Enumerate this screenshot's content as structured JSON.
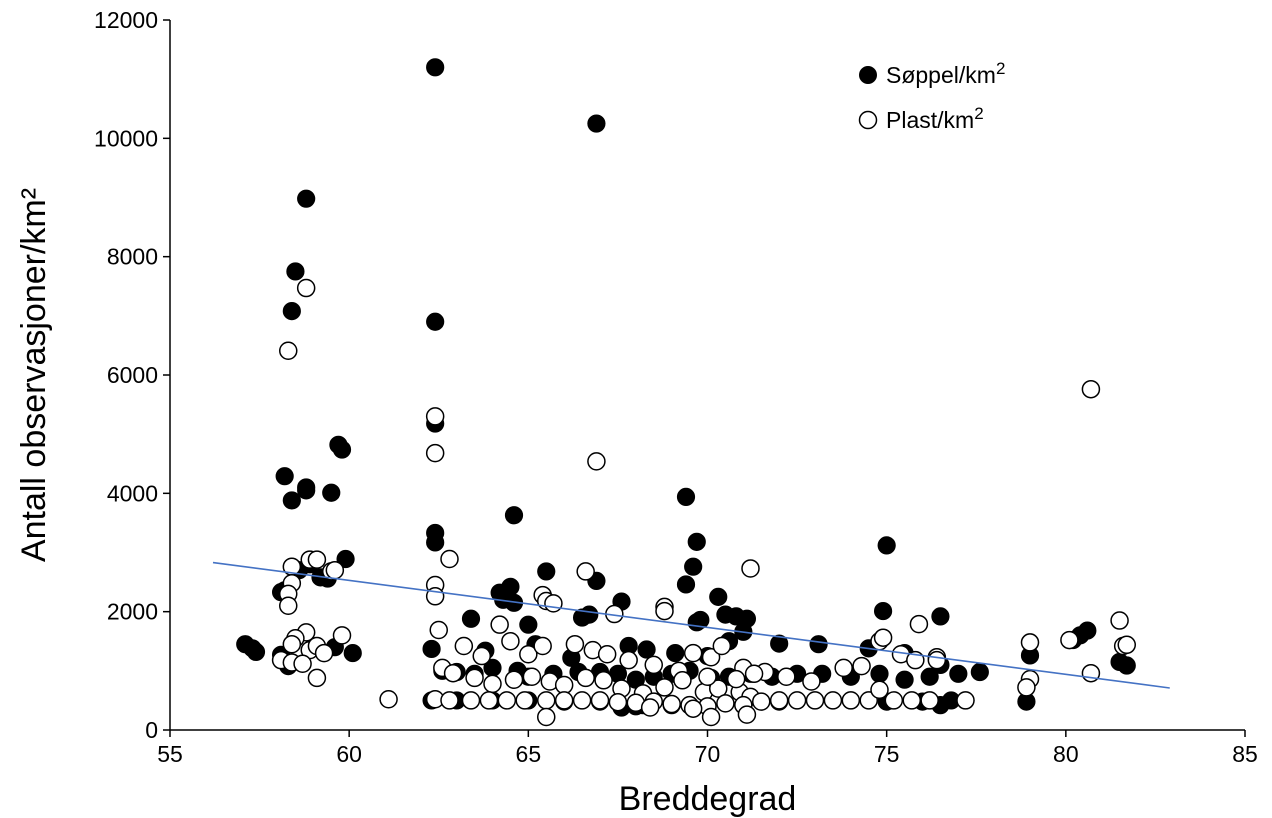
{
  "chart_data": {
    "type": "scatter",
    "title": "",
    "xlabel": "Breddegrad",
    "ylabel": "Antall observasjoner/km²",
    "xlim": [
      55,
      85
    ],
    "ylim": [
      0,
      12000
    ],
    "x_ticks": [
      "55",
      "60",
      "65",
      "70",
      "75",
      "80",
      "85"
    ],
    "y_ticks": [
      "0",
      "2000",
      "4000",
      "6000",
      "8000",
      "10000",
      "12000"
    ],
    "grid": false,
    "legend_position": "top-right",
    "series": [
      {
        "name": "Søppel/km2",
        "marker": "filled-circle",
        "color": "#000000",
        "points": [
          [
            62.4,
            11200
          ],
          [
            66.9,
            10250
          ],
          [
            58.8,
            8980
          ],
          [
            58.5,
            7750
          ],
          [
            58.4,
            7080
          ],
          [
            62.4,
            6900
          ],
          [
            59.7,
            4820
          ],
          [
            59.8,
            4740
          ],
          [
            58.2,
            4290
          ],
          [
            58.8,
            4100
          ],
          [
            58.8,
            4050
          ],
          [
            59.5,
            4010
          ],
          [
            58.4,
            3880
          ],
          [
            69.4,
            3940
          ],
          [
            64.6,
            3630
          ],
          [
            62.4,
            5180
          ],
          [
            62.4,
            3330
          ],
          [
            62.4,
            3170
          ],
          [
            69.7,
            3180
          ],
          [
            75.0,
            3120
          ],
          [
            59.9,
            2890
          ],
          [
            58.9,
            2800
          ],
          [
            58.6,
            2700
          ],
          [
            59.2,
            2580
          ],
          [
            59.4,
            2560
          ],
          [
            58.2,
            2360
          ],
          [
            58.1,
            2330
          ],
          [
            65.5,
            2680
          ],
          [
            66.9,
            2520
          ],
          [
            64.5,
            2420
          ],
          [
            64.2,
            2320
          ],
          [
            69.4,
            2460
          ],
          [
            69.6,
            2760
          ],
          [
            64.3,
            2200
          ],
          [
            64.6,
            2150
          ],
          [
            67.6,
            2170
          ],
          [
            70.3,
            2250
          ],
          [
            65.0,
            1780
          ],
          [
            70.8,
            1920
          ],
          [
            71.1,
            1880
          ],
          [
            74.9,
            2010
          ],
          [
            76.5,
            1920
          ],
          [
            66.5,
            1900
          ],
          [
            66.7,
            1950
          ],
          [
            63.4,
            1880
          ],
          [
            69.8,
            1860
          ],
          [
            70.5,
            1950
          ],
          [
            71.0,
            1660
          ],
          [
            62.3,
            1370
          ],
          [
            63.8,
            1340
          ],
          [
            65.2,
            1450
          ],
          [
            66.2,
            1220
          ],
          [
            67.8,
            1420
          ],
          [
            68.3,
            1360
          ],
          [
            69.1,
            1300
          ],
          [
            70.0,
            1250
          ],
          [
            70.6,
            1500
          ],
          [
            72.0,
            1460
          ],
          [
            73.1,
            1450
          ],
          [
            74.5,
            1380
          ],
          [
            75.5,
            1300
          ],
          [
            76.5,
            1100
          ],
          [
            57.1,
            1450
          ],
          [
            57.3,
            1380
          ],
          [
            57.4,
            1320
          ],
          [
            58.1,
            1270
          ],
          [
            58.3,
            1080
          ],
          [
            59.6,
            1400
          ],
          [
            60.1,
            1300
          ],
          [
            62.6,
            1000
          ],
          [
            63.0,
            980
          ],
          [
            63.5,
            950
          ],
          [
            64.0,
            1050
          ],
          [
            64.7,
            1000
          ],
          [
            65.0,
            900
          ],
          [
            65.7,
            950
          ],
          [
            66.4,
            980
          ],
          [
            67.0,
            980
          ],
          [
            67.5,
            950
          ],
          [
            68.0,
            850
          ],
          [
            68.5,
            900
          ],
          [
            69.0,
            950
          ],
          [
            69.5,
            1000
          ],
          [
            70.1,
            880
          ],
          [
            70.6,
            900
          ],
          [
            71.2,
            950
          ],
          [
            71.8,
            900
          ],
          [
            72.5,
            950
          ],
          [
            73.2,
            950
          ],
          [
            74.0,
            900
          ],
          [
            74.8,
            950
          ],
          [
            75.5,
            850
          ],
          [
            76.2,
            900
          ],
          [
            77.0,
            950
          ],
          [
            77.6,
            980
          ],
          [
            78.9,
            480
          ],
          [
            79.0,
            1260
          ],
          [
            80.2,
            1520
          ],
          [
            80.4,
            1600
          ],
          [
            80.6,
            1680
          ],
          [
            81.5,
            1150
          ],
          [
            81.7,
            1090
          ],
          [
            62.3,
            500
          ],
          [
            63.0,
            500
          ],
          [
            64.0,
            500
          ],
          [
            65.0,
            500
          ],
          [
            66.0,
            480
          ],
          [
            67.0,
            480
          ],
          [
            68.0,
            400
          ],
          [
            69.0,
            420
          ],
          [
            70.0,
            400
          ],
          [
            71.0,
            420
          ],
          [
            72.0,
            480
          ],
          [
            73.0,
            500
          ],
          [
            74.0,
            500
          ],
          [
            75.0,
            480
          ],
          [
            76.0,
            480
          ],
          [
            76.5,
            420
          ],
          [
            76.8,
            500
          ],
          [
            77.2,
            500
          ],
          [
            67.6,
            380
          ],
          [
            68.2,
            420
          ],
          [
            69.7,
            1820
          ]
        ]
      },
      {
        "name": "Plast/km2",
        "marker": "open-circle",
        "color": "#000000",
        "points": [
          [
            58.8,
            7470
          ],
          [
            58.3,
            6410
          ],
          [
            80.7,
            5760
          ],
          [
            62.4,
            5300
          ],
          [
            62.4,
            4680
          ],
          [
            66.9,
            4540
          ],
          [
            58.9,
            2880
          ],
          [
            59.1,
            2880
          ],
          [
            59.5,
            2680
          ],
          [
            59.6,
            2700
          ],
          [
            58.4,
            2760
          ],
          [
            62.8,
            2890
          ],
          [
            66.6,
            2680
          ],
          [
            71.2,
            2730
          ],
          [
            62.4,
            2450
          ],
          [
            62.4,
            2260
          ],
          [
            65.4,
            2280
          ],
          [
            58.4,
            2480
          ],
          [
            58.3,
            2300
          ],
          [
            58.3,
            2100
          ],
          [
            68.8,
            2080
          ],
          [
            68.8,
            2010
          ],
          [
            67.4,
            1960
          ],
          [
            75.9,
            1790
          ],
          [
            64.2,
            1780
          ],
          [
            65.5,
            2180
          ],
          [
            65.7,
            2140
          ],
          [
            79.0,
            1480
          ],
          [
            80.1,
            1520
          ],
          [
            81.5,
            1850
          ],
          [
            81.6,
            1420
          ],
          [
            81.7,
            1440
          ],
          [
            80.7,
            960
          ],
          [
            79.0,
            860
          ],
          [
            78.9,
            720
          ],
          [
            58.8,
            1650
          ],
          [
            58.5,
            1550
          ],
          [
            58.4,
            1450
          ],
          [
            58.9,
            1350
          ],
          [
            59.1,
            1420
          ],
          [
            59.3,
            1300
          ],
          [
            59.8,
            1600
          ],
          [
            58.1,
            1180
          ],
          [
            58.4,
            1140
          ],
          [
            58.7,
            1120
          ],
          [
            59.1,
            880
          ],
          [
            62.5,
            1690
          ],
          [
            63.2,
            1420
          ],
          [
            63.7,
            1250
          ],
          [
            64.5,
            1500
          ],
          [
            65.0,
            1280
          ],
          [
            65.4,
            1420
          ],
          [
            66.3,
            1450
          ],
          [
            66.8,
            1350
          ],
          [
            67.2,
            1280
          ],
          [
            67.8,
            1180
          ],
          [
            68.5,
            1100
          ],
          [
            69.2,
            1000
          ],
          [
            69.6,
            1300
          ],
          [
            70.1,
            1230
          ],
          [
            70.4,
            1420
          ],
          [
            71.0,
            1050
          ],
          [
            71.6,
            980
          ],
          [
            72.2,
            900
          ],
          [
            72.9,
            820
          ],
          [
            73.8,
            1050
          ],
          [
            74.3,
            1080
          ],
          [
            74.8,
            1500
          ],
          [
            74.9,
            1560
          ],
          [
            75.4,
            1280
          ],
          [
            75.8,
            1180
          ],
          [
            76.4,
            1230
          ],
          [
            76.4,
            1180
          ],
          [
            62.6,
            1050
          ],
          [
            62.9,
            960
          ],
          [
            63.5,
            880
          ],
          [
            64.0,
            780
          ],
          [
            64.6,
            850
          ],
          [
            65.1,
            900
          ],
          [
            65.6,
            820
          ],
          [
            66.0,
            760
          ],
          [
            66.6,
            880
          ],
          [
            67.1,
            840
          ],
          [
            67.6,
            700
          ],
          [
            68.2,
            620
          ],
          [
            68.8,
            720
          ],
          [
            69.3,
            840
          ],
          [
            69.9,
            640
          ],
          [
            70.3,
            700
          ],
          [
            70.9,
            640
          ],
          [
            71.2,
            560
          ],
          [
            61.1,
            520
          ],
          [
            62.4,
            520
          ],
          [
            62.8,
            500
          ],
          [
            63.4,
            500
          ],
          [
            63.9,
            500
          ],
          [
            64.4,
            500
          ],
          [
            64.9,
            500
          ],
          [
            65.5,
            500
          ],
          [
            66.0,
            500
          ],
          [
            66.5,
            500
          ],
          [
            67.0,
            500
          ],
          [
            67.5,
            470
          ],
          [
            68.0,
            460
          ],
          [
            68.5,
            480
          ],
          [
            69.0,
            440
          ],
          [
            69.5,
            420
          ],
          [
            70.0,
            400
          ],
          [
            70.5,
            450
          ],
          [
            71.0,
            420
          ],
          [
            71.5,
            480
          ],
          [
            72.0,
            500
          ],
          [
            72.5,
            500
          ],
          [
            73.0,
            500
          ],
          [
            73.5,
            500
          ],
          [
            74.0,
            500
          ],
          [
            74.5,
            500
          ],
          [
            75.2,
            500
          ],
          [
            75.7,
            500
          ],
          [
            76.2,
            500
          ],
          [
            77.2,
            500
          ],
          [
            65.5,
            220
          ],
          [
            70.1,
            220
          ],
          [
            71.1,
            260
          ],
          [
            68.4,
            380
          ],
          [
            69.6,
            360
          ],
          [
            74.8,
            680
          ],
          [
            70.0,
            900
          ],
          [
            71.3,
            950
          ],
          [
            70.8,
            860
          ]
        ]
      }
    ],
    "trendline": {
      "color": "#4472C4",
      "points": [
        [
          56.2,
          2830
        ],
        [
          82.9,
          710
        ]
      ]
    }
  }
}
